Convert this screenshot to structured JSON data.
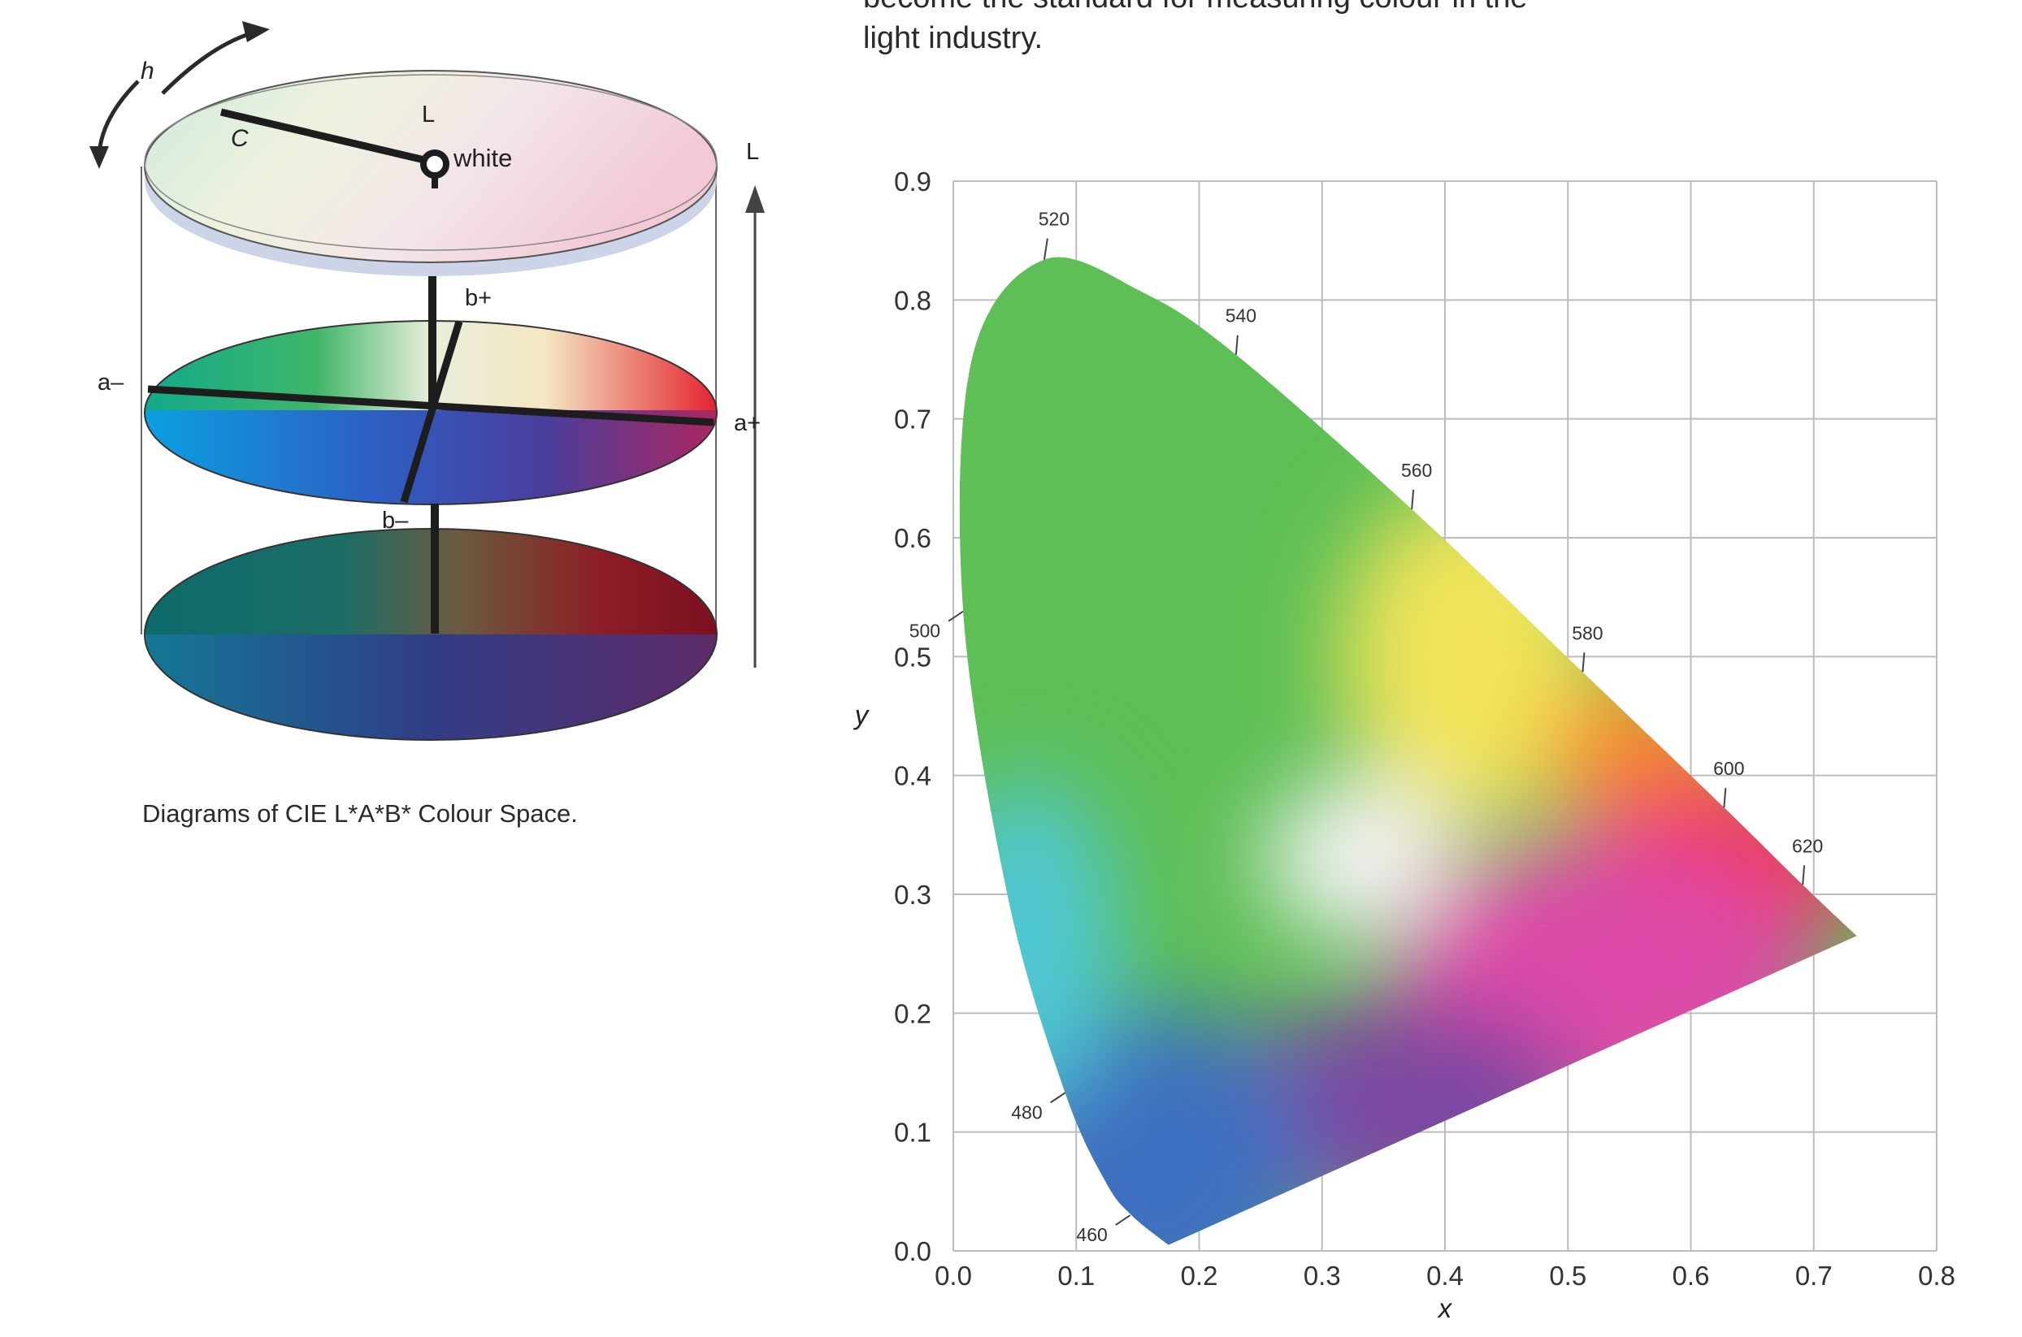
{
  "intro_text": "become the standard for measuring colour in the light industry.",
  "caption": "Diagrams of CIE L*A*B* Colour Space.",
  "lab_diagram": {
    "labels": {
      "hue": "h",
      "chroma": "C",
      "lightness_top": "L",
      "white": "white",
      "lightness_axis": "L",
      "b_plus": "b+",
      "b_minus": "b–",
      "a_minus": "a–",
      "a_plus": "a+"
    }
  },
  "chart_data": {
    "type": "scatter",
    "title": "",
    "xlabel": "x",
    "ylabel": "y",
    "xlim": [
      0.0,
      0.8
    ],
    "ylim": [
      0.0,
      0.9
    ],
    "grid": true,
    "x_ticks": [
      "0.0",
      "0.1",
      "0.2",
      "0.3",
      "0.4",
      "0.5",
      "0.6",
      "0.7",
      "0.8"
    ],
    "y_ticks": [
      "0.0",
      "0.1",
      "0.2",
      "0.3",
      "0.4",
      "0.5",
      "0.6",
      "0.7",
      "0.8",
      "0.9"
    ],
    "wavelength_labels": [
      {
        "label": "460",
        "x": 0.144,
        "y": 0.03
      },
      {
        "label": "480",
        "x": 0.091,
        "y": 0.133
      },
      {
        "label": "500",
        "x": 0.008,
        "y": 0.538
      },
      {
        "label": "520",
        "x": 0.074,
        "y": 0.834
      },
      {
        "label": "540",
        "x": 0.23,
        "y": 0.754
      },
      {
        "label": "560",
        "x": 0.373,
        "y": 0.624
      },
      {
        "label": "580",
        "x": 0.512,
        "y": 0.487
      },
      {
        "label": "600",
        "x": 0.627,
        "y": 0.373
      },
      {
        "label": "620",
        "x": 0.691,
        "y": 0.308
      }
    ],
    "locus": [
      [
        0.175,
        0.005
      ],
      [
        0.145,
        0.03
      ],
      [
        0.124,
        0.058
      ],
      [
        0.091,
        0.133
      ],
      [
        0.045,
        0.295
      ],
      [
        0.008,
        0.538
      ],
      [
        0.015,
        0.75
      ],
      [
        0.074,
        0.834
      ],
      [
        0.155,
        0.806
      ],
      [
        0.23,
        0.754
      ],
      [
        0.373,
        0.624
      ],
      [
        0.512,
        0.487
      ],
      [
        0.627,
        0.373
      ],
      [
        0.691,
        0.308
      ],
      [
        0.735,
        0.265
      ]
    ],
    "colors": {
      "green": "#5dbf55",
      "yellow": "#f1e45a",
      "orange": "#fb8a2c",
      "red": "#f23a55",
      "magenta": "#dd4aa8",
      "purple": "#7d46a2",
      "blue": "#3d6fc0",
      "cyan": "#4fc7d6",
      "white": "#f6f3f6",
      "grid": "#bcbcbc"
    }
  }
}
